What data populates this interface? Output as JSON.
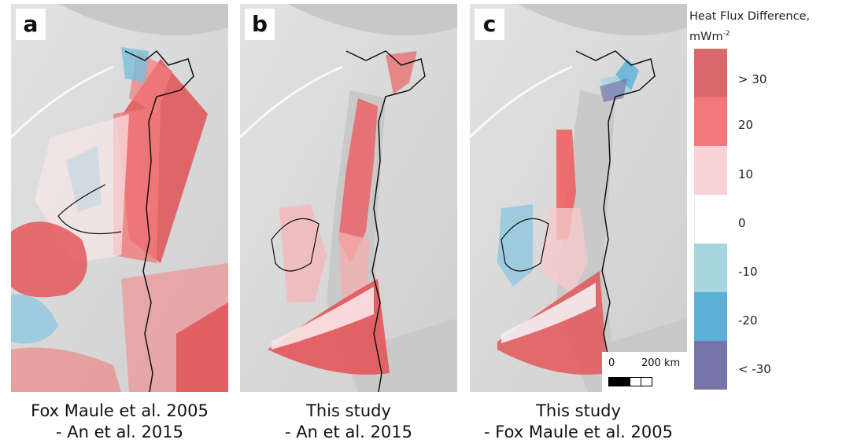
{
  "panels": [
    {
      "letter": "a",
      "caption_line1": "Fox Maule et al. 2005",
      "caption_line2": "- An et al. 2015"
    },
    {
      "letter": "b",
      "caption_line1": "This study",
      "caption_line2": "- An et al. 2015"
    },
    {
      "letter": "c",
      "caption_line1": "This study",
      "caption_line2": "- Fox Maule et al. 2005"
    }
  ],
  "legend": {
    "title_line1": "Heat Flux Difference,",
    "title_line2_unit": "mWm",
    "title_line2_exp": "-2",
    "bins": [
      {
        "label": "> 30",
        "color": "#d9696b"
      },
      {
        "label": "20",
        "color": "#f1797a"
      },
      {
        "label": "10",
        "color": "#fbd3d6"
      },
      {
        "label": "0",
        "color": "#ffffff"
      },
      {
        "label": "-10",
        "color": "#a7d5e0"
      },
      {
        "label": "-20",
        "color": "#5ab0d6"
      },
      {
        "label": "< -30",
        "color": "#7674a8"
      }
    ]
  },
  "scale_bar": {
    "label_start": "0",
    "label_end": "200 km"
  }
}
